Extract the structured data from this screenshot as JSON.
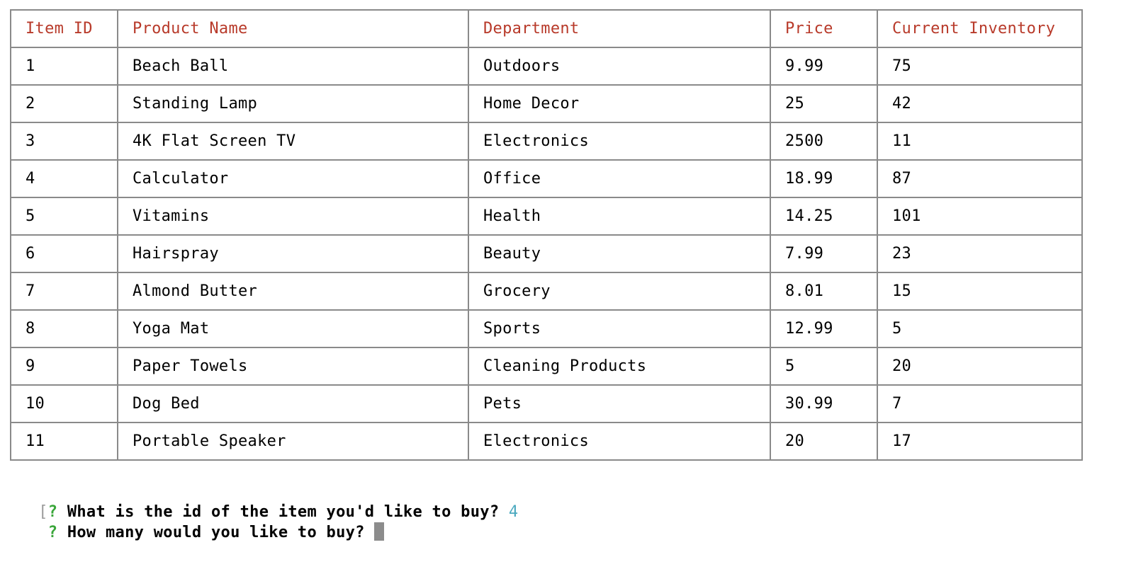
{
  "table": {
    "headers": [
      "Item ID",
      "Product Name",
      "Department",
      "Price",
      "Current Inventory"
    ],
    "rows": [
      [
        "1",
        "Beach Ball",
        "Outdoors",
        "9.99",
        "75"
      ],
      [
        "2",
        "Standing Lamp",
        "Home Decor",
        "25",
        "42"
      ],
      [
        "3",
        "4K Flat Screen TV",
        "Electronics",
        "2500",
        "11"
      ],
      [
        "4",
        "Calculator",
        "Office",
        "18.99",
        "87"
      ],
      [
        "5",
        "Vitamins",
        "Health",
        "14.25",
        "101"
      ],
      [
        "6",
        "Hairspray",
        "Beauty",
        "7.99",
        "23"
      ],
      [
        "7",
        "Almond Butter",
        "Grocery",
        "8.01",
        "15"
      ],
      [
        "8",
        "Yoga Mat",
        "Sports",
        "12.99",
        "5"
      ],
      [
        "9",
        "Paper Towels",
        "Cleaning Products",
        "5",
        "20"
      ],
      [
        "10",
        "Dog Bed",
        "Pets",
        "30.99",
        "7"
      ],
      [
        "11",
        "Portable Speaker",
        "Electronics",
        "20",
        "17"
      ]
    ]
  },
  "prompts": [
    {
      "bracket": "[",
      "marker": "?",
      "question": "What is the id of the item you'd like to buy?",
      "answer": "4"
    },
    {
      "bracket": " ",
      "marker": "?",
      "question": "How many would you like to buy?",
      "answer": ""
    }
  ],
  "colors": {
    "header_text": "#b83a2a",
    "border": "#8a8a8a",
    "prompt_marker": "#3aa63a",
    "answer_text": "#4aa9bf",
    "cursor": "#8c8c8c"
  }
}
